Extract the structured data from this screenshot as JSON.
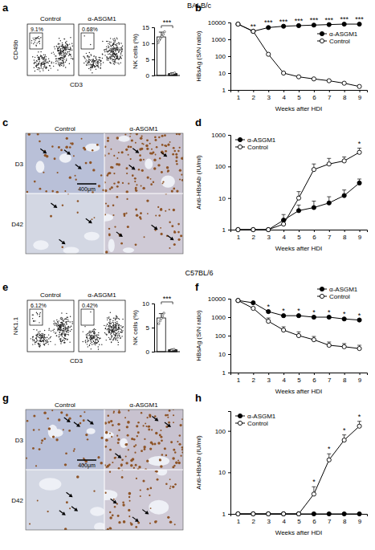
{
  "headers": [
    "BALB/c",
    "C57BL/6"
  ],
  "chart_data": [
    {
      "type": "flow",
      "panel": "a",
      "categories": [
        "Control",
        "α-ASGM1"
      ],
      "values": [
        9.1,
        0.68
      ],
      "value_labels": [
        "9.1%",
        "0.68%"
      ],
      "x_label": "CD3",
      "y_label": "CD49b"
    },
    {
      "type": "bar",
      "categories": [
        "Control",
        "α-ASGM1"
      ],
      "values": [
        12,
        0.6
      ],
      "errors": [
        1.5,
        0.2
      ],
      "points": [
        [
          10.2,
          11,
          11.6,
          12.2,
          12.8,
          13.6
        ],
        [
          0.4,
          0.5,
          0.6,
          0.8
        ]
      ],
      "colors": [
        "#ffffff",
        "#333333"
      ],
      "y_label": "NK cells (%)",
      "ylim": [
        0,
        15
      ],
      "yticks": [
        0,
        5,
        10,
        15
      ],
      "tick_labels": "y",
      "annotations": [
        {
          "text": "***"
        }
      ]
    },
    {
      "type": "line",
      "panel": "b",
      "log": "y",
      "x": [
        1,
        2,
        3,
        4,
        5,
        6,
        7,
        8,
        9
      ],
      "xlim": [
        0.5,
        9.5
      ],
      "xticks": [
        1,
        2,
        3,
        4,
        5,
        6,
        7,
        8,
        9
      ],
      "ylim": [
        1,
        10000
      ],
      "yticks": [
        1,
        10,
        100,
        1000,
        10000
      ],
      "x_label": "Weeks after HDI",
      "y_label": "HBsAg (S/N ratio)",
      "legend": "upper right",
      "series": [
        {
          "name": "α-ASGM1",
          "color": "#000000",
          "marker": "filled",
          "values": [
            8000,
            3000,
            5000,
            6000,
            6500,
            7000,
            7500,
            8000,
            8000
          ]
        },
        {
          "name": "Control",
          "color": "#000000",
          "marker": "open",
          "values": [
            8000,
            3000,
            130,
            10,
            6,
            4.5,
            3.5,
            2.5,
            1.6
          ]
        }
      ],
      "annotations": [
        {
          "x": 2,
          "text": "**"
        },
        {
          "x": 3,
          "text": "***"
        },
        {
          "x": 4,
          "text": "***"
        },
        {
          "x": 5,
          "text": "***"
        },
        {
          "x": 6,
          "text": "***"
        },
        {
          "x": 7,
          "text": "***"
        },
        {
          "x": 8,
          "text": "***"
        },
        {
          "x": 9,
          "text": "***"
        }
      ]
    },
    {
      "type": "line",
      "panel": "d",
      "log": "y",
      "x": [
        1,
        2,
        3,
        4,
        5,
        6,
        7,
        8,
        9
      ],
      "xlim": [
        0.5,
        9.5
      ],
      "xticks": [
        1,
        2,
        3,
        4,
        5,
        6,
        7,
        8,
        9
      ],
      "ylim": [
        1,
        1000
      ],
      "yticks": [
        1,
        10,
        100,
        1000
      ],
      "x_label": "Weeks after HDI",
      "y_label": "Anti-HBsAb (IU/ml)",
      "legend": "upper left",
      "series": [
        {
          "name": "α-ASGM1",
          "color": "#000000",
          "marker": "filled",
          "values": [
            1,
            1,
            1,
            2,
            4,
            5,
            7,
            12,
            30
          ],
          "errors": [
            0,
            0,
            0,
            1,
            2,
            3,
            4,
            6,
            10
          ]
        },
        {
          "name": "Control",
          "color": "#000000",
          "marker": "open",
          "values": [
            1,
            1,
            1,
            1.5,
            10,
            80,
            120,
            150,
            280
          ],
          "errors": [
            0,
            0,
            0,
            0.5,
            6,
            40,
            60,
            50,
            100
          ]
        }
      ],
      "annotations": [
        {
          "x": 9,
          "text": "*"
        }
      ]
    },
    {
      "type": "flow",
      "panel": "e",
      "categories": [
        "Control",
        "α-ASGM1"
      ],
      "values": [
        6.12,
        0.42
      ],
      "value_labels": [
        "6.12%",
        "0.42%"
      ],
      "x_label": "CD3",
      "y_label": "NK1.1"
    },
    {
      "type": "bar",
      "categories": [
        "Control",
        "α-ASGM1"
      ],
      "values": [
        7,
        0.4
      ],
      "errors": [
        0.9,
        0.1
      ],
      "points": [
        [
          5.8,
          6.4,
          6.9,
          7.4,
          8
        ],
        [
          0.3,
          0.4,
          0.5
        ]
      ],
      "colors": [
        "#ffffff",
        "#333333"
      ],
      "y_label": "NK cells (%)",
      "ylim": [
        0,
        10
      ],
      "yticks": [
        0,
        5,
        10
      ],
      "tick_labels": "y",
      "annotations": [
        {
          "text": "***"
        }
      ]
    },
    {
      "type": "line",
      "panel": "f",
      "log": "y",
      "x": [
        1,
        2,
        3,
        4,
        5,
        6,
        7,
        8,
        9
      ],
      "xlim": [
        0.5,
        9.5
      ],
      "xticks": [
        1,
        2,
        3,
        4,
        5,
        6,
        7,
        8,
        9
      ],
      "ylim": [
        1,
        10000
      ],
      "yticks": [
        1,
        10,
        100,
        1000,
        10000
      ],
      "x_label": "Weeks after HDI",
      "y_label": "HBsAg (S/N ratio)",
      "legend": "upper right",
      "series": [
        {
          "name": "α-ASGM1",
          "color": "#000000",
          "marker": "filled",
          "values": [
            8000,
            6000,
            2000,
            1200,
            1200,
            1000,
            1000,
            800,
            700
          ]
        },
        {
          "name": "Control",
          "color": "#000000",
          "marker": "open",
          "values": [
            8000,
            3000,
            600,
            200,
            100,
            60,
            30,
            25,
            20
          ],
          "errors": [
            0,
            0,
            300,
            100,
            60,
            30,
            15,
            12,
            10
          ]
        }
      ],
      "annotations": [
        {
          "x": 3,
          "text": "*"
        },
        {
          "x": 4,
          "text": "*"
        },
        {
          "x": 5,
          "text": "*"
        },
        {
          "x": 6,
          "text": "*"
        },
        {
          "x": 7,
          "text": "*"
        },
        {
          "x": 8,
          "text": "*"
        },
        {
          "x": 9,
          "text": "*"
        }
      ]
    },
    {
      "type": "line",
      "panel": "h",
      "log": "y",
      "x": [
        1,
        2,
        3,
        4,
        5,
        6,
        7,
        8,
        9
      ],
      "xlim": [
        0.5,
        9.5
      ],
      "xticks": [
        1,
        2,
        3,
        4,
        5,
        6,
        7,
        8,
        9
      ],
      "ylim": [
        1,
        300
      ],
      "yticks": [
        1,
        10,
        100
      ],
      "x_label": "Weeks after HDI",
      "y_label": "Anti-HBsAb (IU/ml)",
      "legend": "upper left",
      "series": [
        {
          "name": "α-ASGM1",
          "color": "#000000",
          "marker": "filled",
          "values": [
            1,
            1,
            1,
            1,
            1,
            1,
            1,
            1,
            1
          ]
        },
        {
          "name": "Control",
          "color": "#000000",
          "marker": "open",
          "values": [
            1,
            1,
            1,
            1,
            1,
            3,
            20,
            60,
            130
          ],
          "errors": [
            0,
            0,
            0,
            0,
            0,
            1.5,
            8,
            20,
            40
          ]
        }
      ],
      "annotations": [
        {
          "x": 6,
          "text": "*"
        },
        {
          "x": 7,
          "text": "*"
        },
        {
          "x": 8,
          "text": "*"
        },
        {
          "x": 9,
          "text": "*"
        }
      ]
    }
  ],
  "histology": [
    {
      "panel": "c",
      "columns": [
        "Control",
        "α-ASGM1"
      ],
      "rows": [
        "D3",
        "D42"
      ],
      "scale_bar": "400μm"
    },
    {
      "panel": "g",
      "columns": [
        "Control",
        "α-ASGM1"
      ],
      "rows": [
        "D3",
        "D42"
      ],
      "scale_bar": "400μm"
    }
  ]
}
